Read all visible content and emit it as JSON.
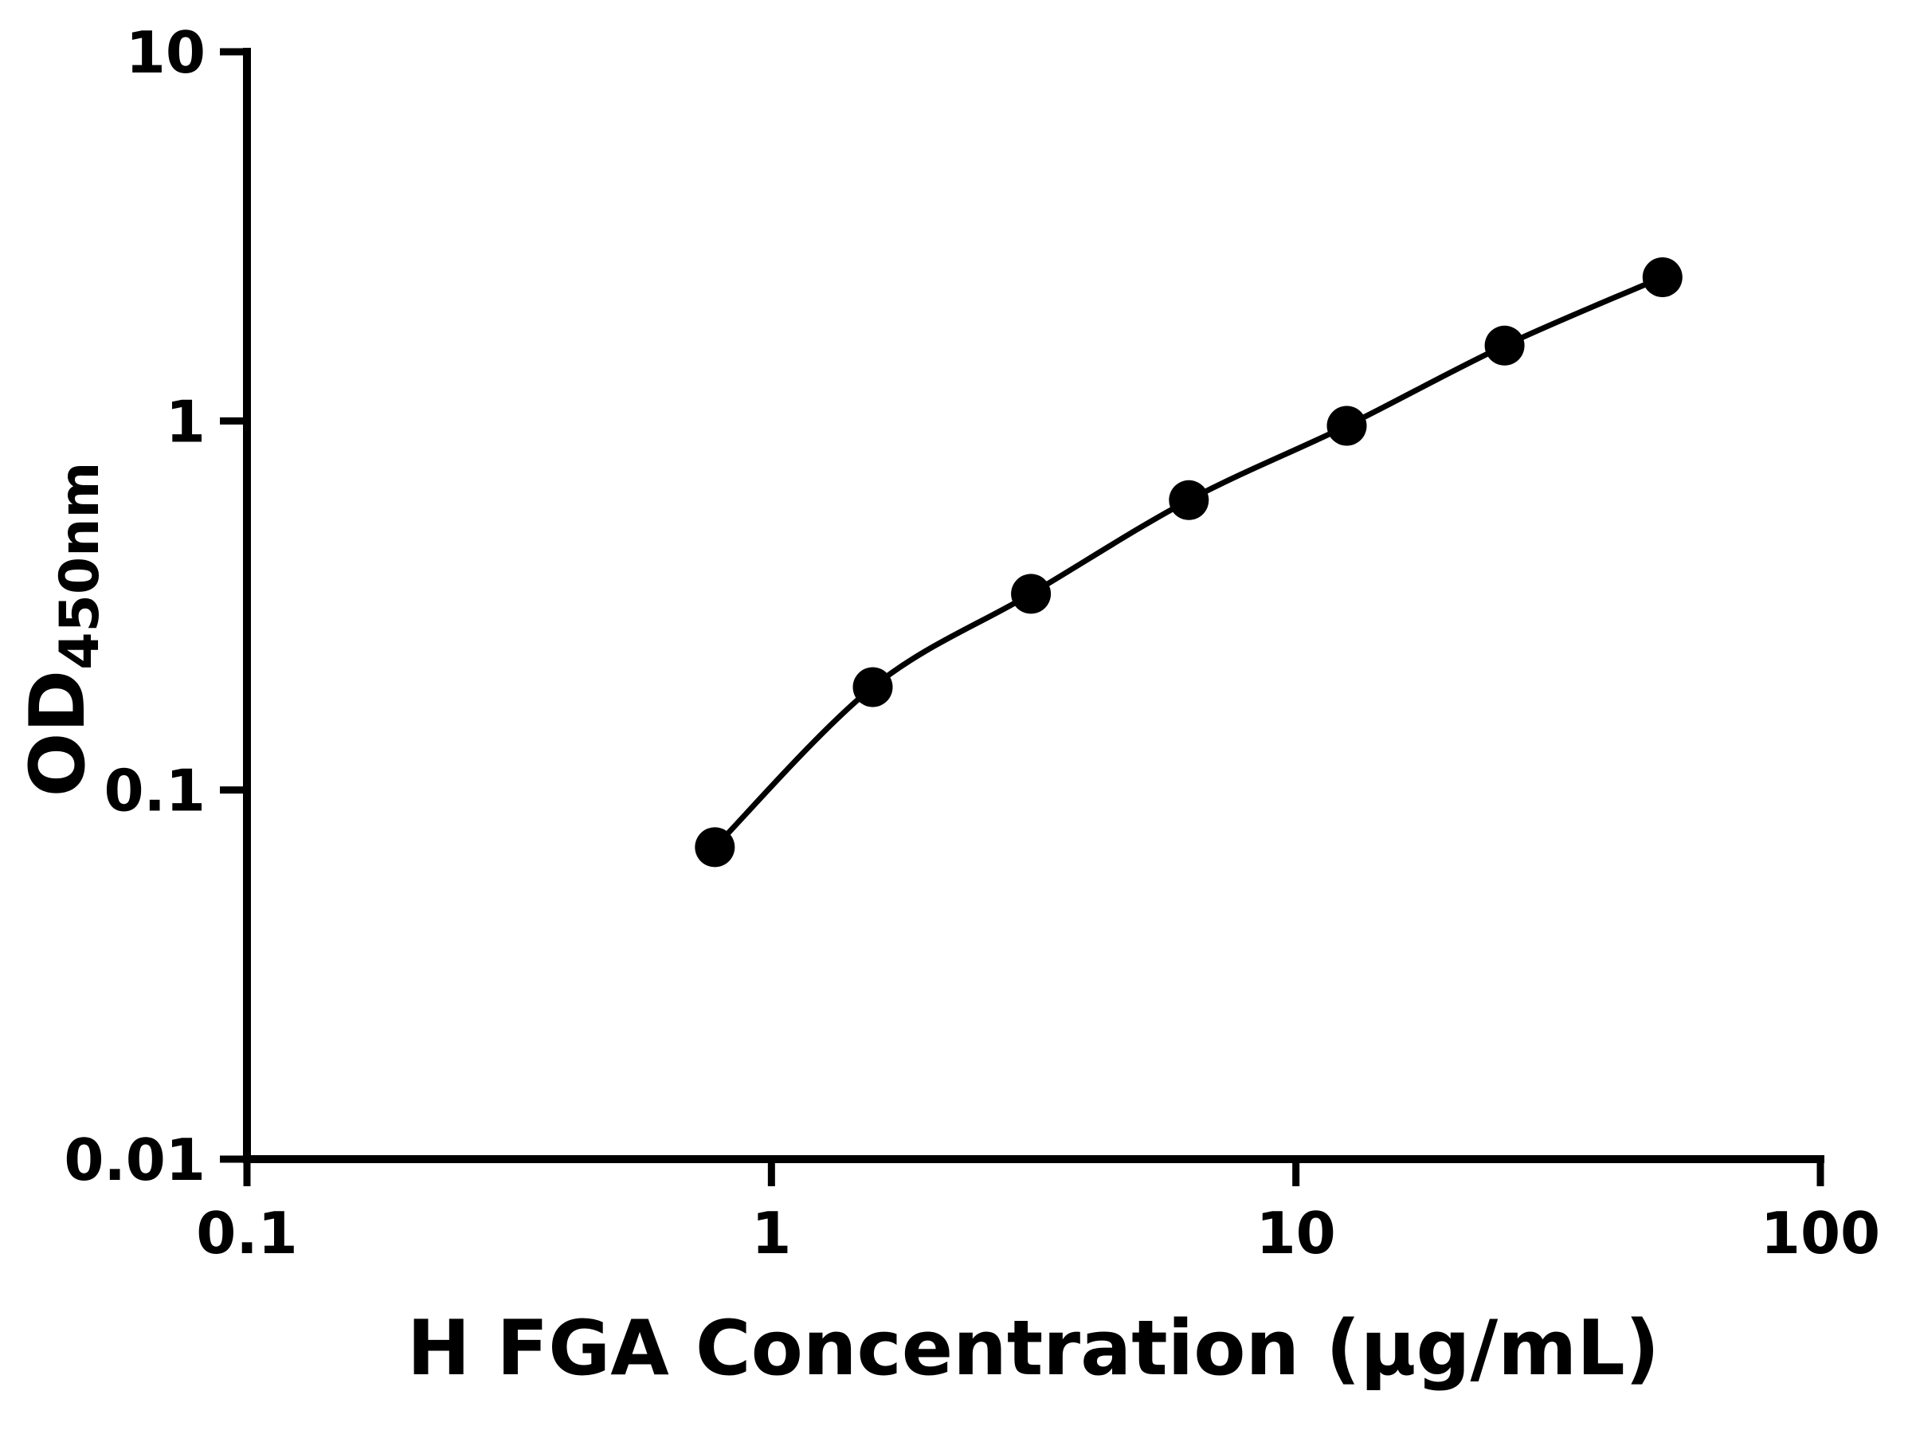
{
  "chart_data": {
    "type": "scatter",
    "title": "",
    "xlabel": "H FGA Concentration (μg/mL)",
    "ylabel_main": "OD",
    "ylabel_sub": "450nm",
    "x": [
      0.78,
      1.56,
      3.125,
      6.25,
      12.5,
      25,
      50
    ],
    "y": [
      0.07,
      0.19,
      0.34,
      0.61,
      0.97,
      1.6,
      2.45
    ],
    "x_scale": "log",
    "y_scale": "log",
    "xlim": [
      0.1,
      100
    ],
    "ylim": [
      0.01,
      10
    ],
    "x_ticks": [
      0.1,
      1,
      10,
      100
    ],
    "x_tick_labels": [
      "0.1",
      "1",
      "10",
      "100"
    ],
    "y_ticks": [
      0.01,
      0.1,
      1,
      10
    ],
    "y_tick_labels": [
      "0.01",
      "0.1",
      "1",
      "10"
    ],
    "grid": false,
    "legend": "none",
    "has_fit_curve": true,
    "color": "#000000",
    "background": "#ffffff"
  }
}
